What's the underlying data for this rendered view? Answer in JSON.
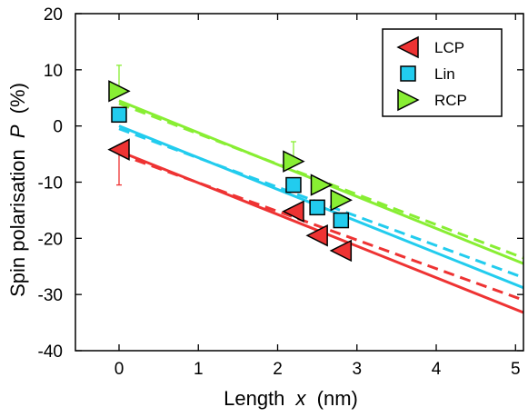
{
  "chart_data": {
    "type": "scatter",
    "xlabel": "Length",
    "xlabel_var": "x",
    "xlabel_unit": "(nm)",
    "ylabel": "Spin polarisation",
    "ylabel_var": "P",
    "ylabel_unit": "(%)",
    "xlim": [
      -0.55,
      5.1
    ],
    "ylim": [
      -40,
      20
    ],
    "xticks": [
      0,
      1,
      2,
      3,
      4,
      5
    ],
    "yticks": [
      -40,
      -30,
      -20,
      -10,
      0,
      10,
      20
    ],
    "grid": false,
    "legend_position": "top-right",
    "series": [
      {
        "name": "LCP",
        "color": "#ee3333",
        "marker": "triangle-left",
        "x": [
          0,
          2.2,
          2.5,
          2.8
        ],
        "y": [
          -4.2,
          -15.2,
          -19.5,
          -22.2
        ],
        "error_bars": [
          {
            "x": 0,
            "low": -10.5,
            "high": -3.5
          }
        ],
        "fit_solid": {
          "x": [
            0,
            5.1
          ],
          "y": [
            -4.5,
            -33.2
          ]
        },
        "fit_dashed": {
          "x": [
            0,
            5.1
          ],
          "y": [
            -5.0,
            -31.0
          ]
        }
      },
      {
        "name": "Lin",
        "color": "#22ccee",
        "marker": "square",
        "x": [
          0,
          2.2,
          2.5,
          2.8
        ],
        "y": [
          2.0,
          -10.5,
          -14.5,
          -16.8
        ],
        "error_bars": [],
        "fit_solid": {
          "x": [
            0,
            5.1
          ],
          "y": [
            0.0,
            -28.8
          ]
        },
        "fit_dashed": {
          "x": [
            0,
            5.1
          ],
          "y": [
            -0.5,
            -27.0
          ]
        }
      },
      {
        "name": "RCP",
        "color": "#88ee33",
        "marker": "triangle-right",
        "x": [
          0,
          2.2,
          2.55,
          2.8
        ],
        "y": [
          6.2,
          -6.3,
          -10.5,
          -13.2
        ],
        "error_bars": [
          {
            "x": 0,
            "low": 6.2,
            "high": 10.8
          },
          {
            "x": 2.2,
            "low": -6.3,
            "high": -2.8
          }
        ],
        "fit_solid": {
          "x": [
            0,
            5.1
          ],
          "y": [
            4.5,
            -24.5
          ]
        },
        "fit_dashed": {
          "x": [
            0,
            5.1
          ],
          "y": [
            4.0,
            -23.5
          ]
        }
      }
    ]
  }
}
